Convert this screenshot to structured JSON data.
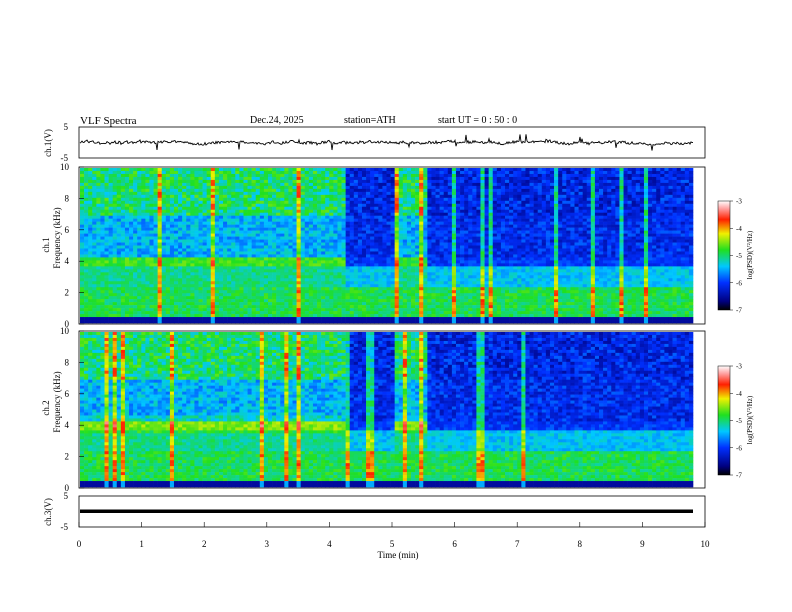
{
  "header": {
    "title": "VLF  Spectra",
    "date": "Dec.24, 2025",
    "station": "station=ATH",
    "start": "start  UT  =    0 : 50 : 0"
  },
  "chart_data": [
    {
      "type": "line",
      "name": "ch1-waveform",
      "ylabel": "ch.1(V)",
      "ylim": [
        -5,
        5
      ],
      "yticks": [
        "5",
        "-5"
      ],
      "xlim": [
        0,
        10
      ]
    },
    {
      "type": "heatmap",
      "name": "ch1-spectrogram",
      "ylabel": "ch.1\nFrequency (kHz)",
      "ylabel_channel": "ch.1",
      "ylabel_axis": "Frequency  (kHz)",
      "ylim": [
        0,
        10
      ],
      "yticks": [
        "0",
        "2",
        "4",
        "6",
        "8",
        "10"
      ],
      "xlim": [
        0,
        9.8
      ],
      "colorbar": {
        "label": "log(PSD)(V²/Hz)",
        "ticks": [
          "-3",
          "-4",
          "-5",
          "-6",
          "-7"
        ],
        "range": [
          -7,
          -3
        ]
      }
    },
    {
      "type": "heatmap",
      "name": "ch2-spectrogram",
      "ylabel_channel": "ch.2",
      "ylabel_axis": "Frequency  (kHz)",
      "ylim": [
        0,
        10
      ],
      "yticks": [
        "0",
        "2",
        "4",
        "6",
        "8",
        "10"
      ],
      "xlim": [
        0,
        9.8
      ],
      "colorbar": {
        "label": "log(PSD)(V²/Hz)",
        "ticks": [
          "-3",
          "-4",
          "-5",
          "-6",
          "-7"
        ],
        "range": [
          -7,
          -3
        ]
      }
    },
    {
      "type": "line",
      "name": "ch3-waveform",
      "ylabel": "ch.3(V)",
      "ylim": [
        -5,
        5
      ],
      "yticks": [
        "5",
        "-5"
      ],
      "xlim": [
        0,
        10
      ],
      "xlabel": "Time  (min)",
      "xticks": [
        "0",
        "1",
        "2",
        "3",
        "4",
        "5",
        "6",
        "7",
        "8",
        "9",
        "10"
      ]
    }
  ],
  "colors": {
    "noise_low": "#0000a0",
    "noise_mid": "#00d8ff",
    "noise_green": "#20e040",
    "noise_high": "#ff0000"
  }
}
